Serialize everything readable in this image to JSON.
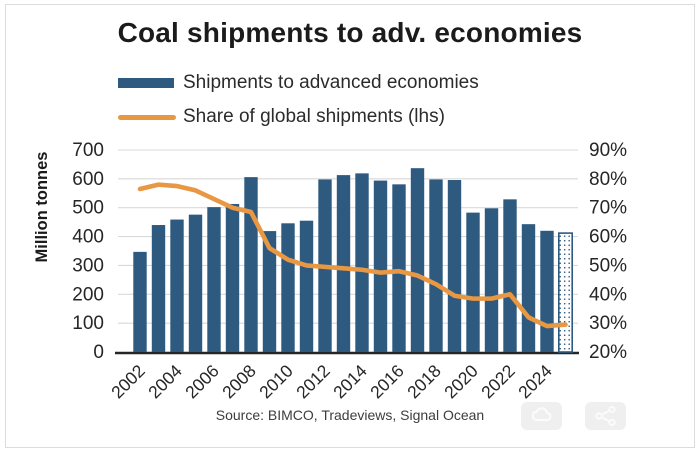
{
  "title": "Coal shipments to adv. economies",
  "legend": [
    {
      "label": "Shipments to advanced economies",
      "swatch": "bar-swatch-icon",
      "color": "#2F5A7F"
    },
    {
      "label": "Share of global shipments (lhs)",
      "swatch": "line-swatch-icon",
      "color": "#E89743"
    }
  ],
  "y_left": {
    "label": "Million tonnes",
    "ticks": [
      "700",
      "600",
      "500",
      "400",
      "300",
      "200",
      "100",
      "0"
    ],
    "min": 0,
    "max": 700
  },
  "y_right": {
    "ticks": [
      "90%",
      "80%",
      "70%",
      "60%",
      "50%",
      "40%",
      "30%",
      "20%"
    ],
    "min": 20,
    "max": 90
  },
  "source": "Source: BIMCO, Tradeviews, Signal Ocean",
  "overlay_buttons": [
    {
      "icon": "cloud-icon"
    },
    {
      "icon": "share-network-icon"
    }
  ],
  "colors": {
    "bar": "#2F5A7F",
    "line": "#E89743",
    "grid": "#D9D9D9",
    "baseline": "#262626",
    "axis_text": "#262626"
  },
  "chart_data": {
    "type": "bar+line",
    "title": "Coal shipments to adv. economies",
    "x": [
      2002,
      2003,
      2004,
      2005,
      2006,
      2007,
      2008,
      2009,
      2010,
      2011,
      2012,
      2013,
      2014,
      2015,
      2016,
      2017,
      2018,
      2019,
      2020,
      2021,
      2022,
      2023,
      2024,
      2025
    ],
    "x_tick_labels": [
      "2002",
      "2004",
      "2006",
      "2008",
      "2010",
      "2012",
      "2014",
      "2016",
      "2018",
      "2020",
      "2022",
      "2024"
    ],
    "series": [
      {
        "name": "Shipments to advanced economies",
        "type": "bar",
        "axis": "left",
        "unit": "million tonnes",
        "color": "#2F5A7F",
        "values": [
          347,
          440,
          459,
          476,
          502,
          513,
          606,
          419,
          446,
          455,
          598,
          613,
          619,
          594,
          581,
          637,
          598,
          596,
          483,
          498,
          529,
          443,
          420,
          412
        ],
        "last_bar_forecast_dotted": true
      },
      {
        "name": "Share of global shipments (lhs)",
        "type": "line",
        "axis": "right",
        "unit": "%",
        "color": "#E89743",
        "values": [
          76.5,
          78,
          77.5,
          76,
          73,
          70,
          68.5,
          56,
          52,
          50,
          49.5,
          49,
          48.5,
          47.5,
          48,
          46.5,
          43.5,
          39.5,
          38.5,
          38.5,
          40,
          32,
          29,
          29.5
        ]
      }
    ],
    "ylim_left": [
      0,
      700
    ],
    "ylim_right": [
      20,
      90
    ],
    "ylabel_left": "Million tonnes",
    "grid": true,
    "legend_position": "top-left"
  }
}
